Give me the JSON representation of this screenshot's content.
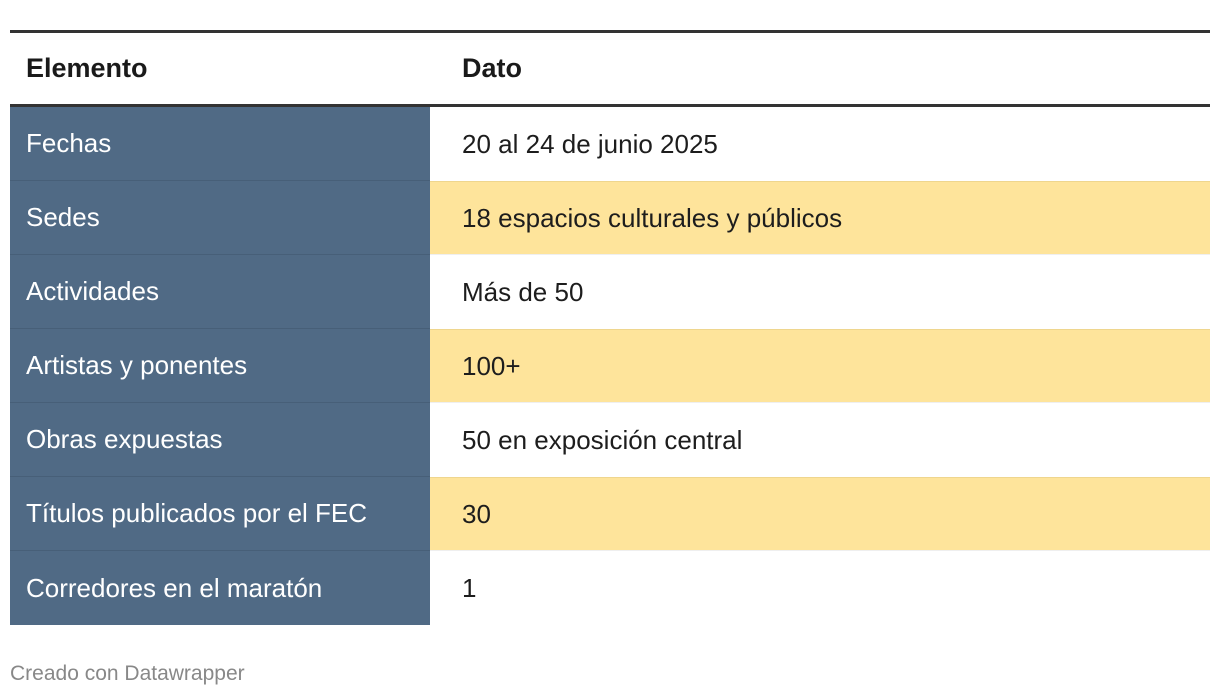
{
  "table": {
    "headers": [
      "Elemento",
      "Dato"
    ],
    "rows": [
      {
        "label": "Fechas",
        "value": "20 al 24 de junio 2025"
      },
      {
        "label": "Sedes",
        "value": "18 espacios culturales y públicos"
      },
      {
        "label": "Actividades",
        "value": "Más de 50"
      },
      {
        "label": "Artistas y ponentes",
        "value": "100+"
      },
      {
        "label": "Obras expuestas",
        "value": "50 en exposición central"
      },
      {
        "label": "Títulos publicados por el FEC",
        "value": "30"
      },
      {
        "label": "Corredores en el maratón",
        "value": "1"
      }
    ]
  },
  "footer": {
    "credit": "Creado con Datawrapper"
  },
  "colors": {
    "label_column_bg": "#506a85",
    "highlight_row_bg": "#fee49b",
    "rule": "#333333"
  }
}
